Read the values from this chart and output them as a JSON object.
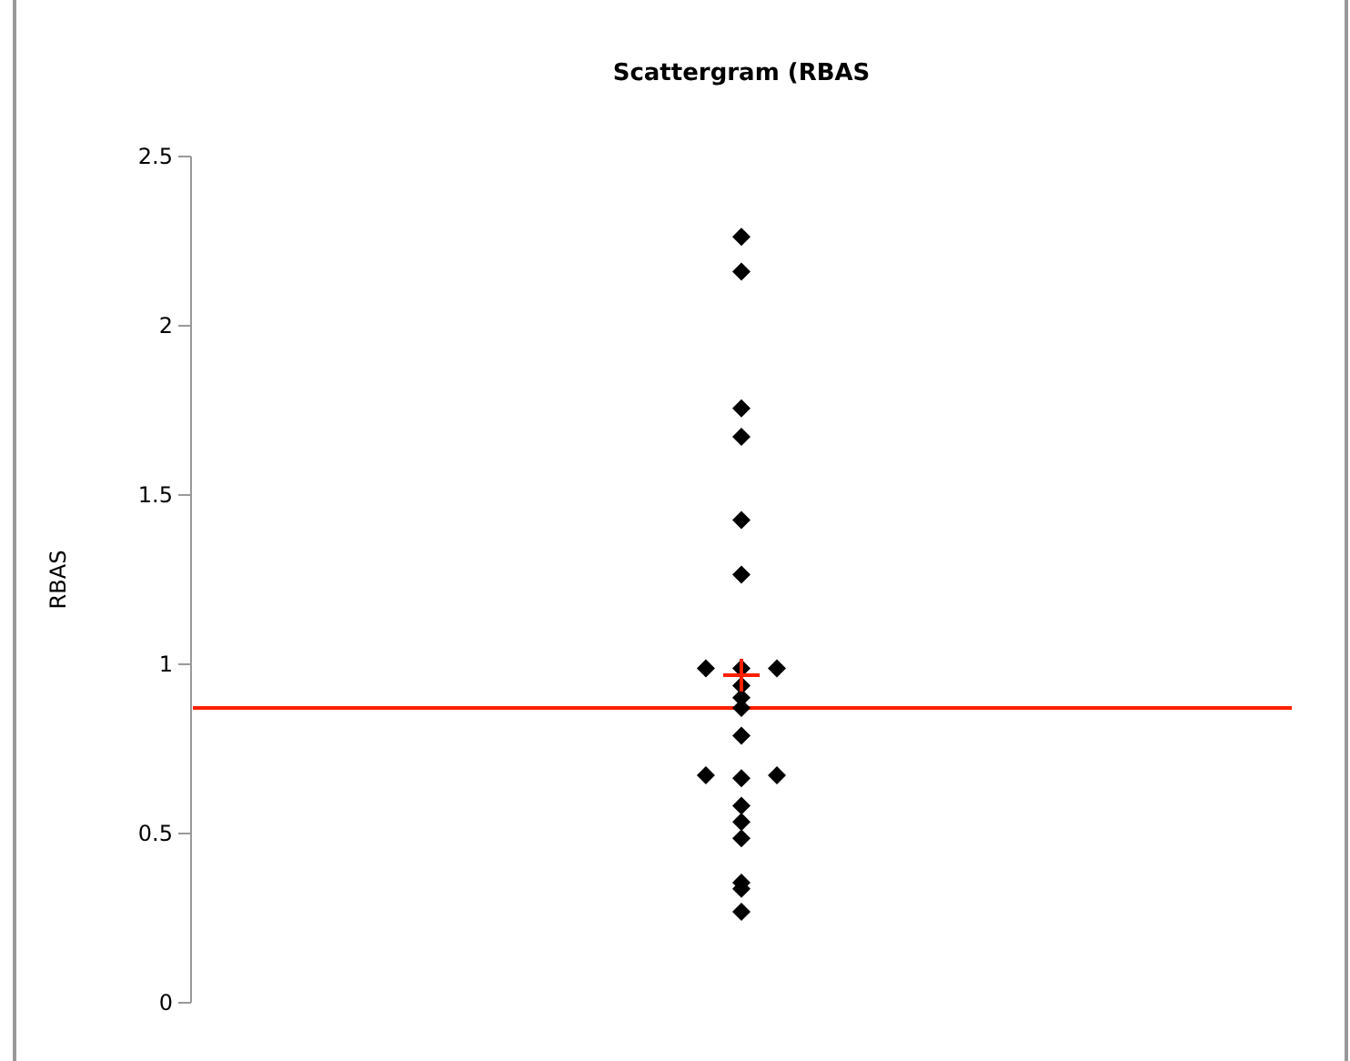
{
  "chart_data": {
    "type": "scatter",
    "title": "Scattergram (RBAS",
    "ylabel": "RBAS",
    "categories": [
      null,
      null,
      null,
      null,
      null,
      null,
      null,
      null,
      null,
      null,
      null,
      null,
      null,
      null,
      null,
      null,
      null,
      null,
      null,
      null,
      null,
      null,
      null,
      null,
      null,
      null,
      null,
      null,
      null,
      null,
      null
    ],
    "ylim": [
      0,
      2.5
    ],
    "yticks": [
      0,
      0.5,
      1,
      1.5,
      2,
      2.5
    ],
    "marker": "diamond",
    "ref_lines": [
      {
        "axis": "y",
        "value": 0.871,
        "color": "#ff2000"
      }
    ],
    "series": [
      {
        "color": "#000000",
        "values": [
          null,
          null,
          null,
          null,
          null,
          null,
          null,
          null,
          null,
          null,
          null,
          null,
          null,
          null,
          null,
          2.263,
          null,
          null,
          null,
          null,
          null,
          null,
          null,
          null,
          null,
          null,
          null,
          null,
          null,
          null,
          null
        ]
      },
      {
        "color": "#000000",
        "values": [
          null,
          null,
          null,
          null,
          null,
          null,
          null,
          null,
          null,
          null,
          null,
          null,
          null,
          null,
          null,
          2.16,
          null,
          null,
          null,
          null,
          null,
          null,
          null,
          null,
          null,
          null,
          null,
          null,
          null,
          null,
          null
        ]
      },
      {
        "color": "#000000",
        "values": [
          null,
          null,
          null,
          null,
          null,
          null,
          null,
          null,
          null,
          null,
          null,
          null,
          null,
          null,
          null,
          1.756,
          null,
          null,
          null,
          null,
          null,
          null,
          null,
          null,
          null,
          null,
          null,
          null,
          null,
          null,
          null
        ]
      },
      {
        "color": "#000000",
        "values": [
          null,
          null,
          null,
          null,
          null,
          null,
          null,
          null,
          null,
          null,
          null,
          null,
          null,
          null,
          null,
          1.672,
          null,
          null,
          null,
          null,
          null,
          null,
          null,
          null,
          null,
          null,
          null,
          null,
          null,
          null,
          null
        ]
      },
      {
        "color": "#000000",
        "values": [
          null,
          null,
          null,
          null,
          null,
          null,
          null,
          null,
          null,
          null,
          null,
          null,
          null,
          null,
          null,
          1.426,
          null,
          null,
          null,
          null,
          null,
          null,
          null,
          null,
          null,
          null,
          null,
          null,
          null,
          null,
          null
        ]
      },
      {
        "color": "#000000",
        "values": [
          null,
          null,
          null,
          null,
          null,
          null,
          null,
          null,
          null,
          null,
          null,
          null,
          null,
          null,
          null,
          1.265,
          null,
          null,
          null,
          null,
          null,
          null,
          null,
          null,
          null,
          null,
          null,
          null,
          null,
          null,
          null
        ]
      },
      {
        "color": "#000000",
        "values": [
          null,
          null,
          null,
          null,
          null,
          null,
          null,
          null,
          null,
          null,
          null,
          null,
          null,
          null,
          0.988,
          0.988,
          0.988,
          null,
          null,
          null,
          null,
          null,
          null,
          null,
          null,
          null,
          null,
          null,
          null,
          null,
          null
        ]
      },
      {
        "color": "#000000",
        "values": [
          null,
          null,
          null,
          null,
          null,
          null,
          null,
          null,
          null,
          null,
          null,
          null,
          null,
          null,
          null,
          0.937,
          null,
          null,
          null,
          null,
          null,
          null,
          null,
          null,
          null,
          null,
          null,
          null,
          null,
          null,
          null
        ]
      },
      {
        "color": "#000000",
        "values": [
          null,
          null,
          null,
          null,
          null,
          null,
          null,
          null,
          null,
          null,
          null,
          null,
          null,
          null,
          null,
          0.901,
          null,
          null,
          null,
          null,
          null,
          null,
          null,
          null,
          null,
          null,
          null,
          null,
          null,
          null,
          null
        ]
      },
      {
        "color": "#000000",
        "values": [
          null,
          null,
          null,
          null,
          null,
          null,
          null,
          null,
          null,
          null,
          null,
          null,
          null,
          null,
          null,
          0.871,
          null,
          null,
          null,
          null,
          null,
          null,
          null,
          null,
          null,
          null,
          null,
          null,
          null,
          null,
          null
        ]
      },
      {
        "color": "#000000",
        "values": [
          null,
          null,
          null,
          null,
          null,
          null,
          null,
          null,
          null,
          null,
          null,
          null,
          null,
          null,
          null,
          0.789,
          null,
          null,
          null,
          null,
          null,
          null,
          null,
          null,
          null,
          null,
          null,
          null,
          null,
          null,
          null
        ]
      },
      {
        "color": "#000000",
        "values": [
          null,
          null,
          null,
          null,
          null,
          null,
          null,
          null,
          null,
          null,
          null,
          null,
          null,
          null,
          0.672,
          0.663,
          0.672,
          null,
          null,
          null,
          null,
          null,
          null,
          null,
          null,
          null,
          null,
          null,
          null,
          null,
          null
        ]
      },
      {
        "color": "#000000",
        "values": [
          null,
          null,
          null,
          null,
          null,
          null,
          null,
          null,
          null,
          null,
          null,
          null,
          null,
          null,
          null,
          0.582,
          null,
          null,
          null,
          null,
          null,
          null,
          null,
          null,
          null,
          null,
          null,
          null,
          null,
          null,
          null
        ]
      },
      {
        "color": "#000000",
        "values": [
          null,
          null,
          null,
          null,
          null,
          null,
          null,
          null,
          null,
          null,
          null,
          null,
          null,
          null,
          null,
          0.534,
          null,
          null,
          null,
          null,
          null,
          null,
          null,
          null,
          null,
          null,
          null,
          null,
          null,
          null,
          null
        ]
      },
      {
        "color": "#000000",
        "values": [
          null,
          null,
          null,
          null,
          null,
          null,
          null,
          null,
          null,
          null,
          null,
          null,
          null,
          null,
          null,
          0.486,
          null,
          null,
          null,
          null,
          null,
          null,
          null,
          null,
          null,
          null,
          null,
          null,
          null,
          null,
          null
        ]
      },
      {
        "color": "#000000",
        "values": [
          null,
          null,
          null,
          null,
          null,
          null,
          null,
          null,
          null,
          null,
          null,
          null,
          null,
          null,
          null,
          0.355,
          null,
          null,
          null,
          null,
          null,
          null,
          null,
          null,
          null,
          null,
          null,
          null,
          null,
          null,
          null
        ]
      },
      {
        "color": "#000000",
        "values": [
          null,
          null,
          null,
          null,
          null,
          null,
          null,
          null,
          null,
          null,
          null,
          null,
          null,
          null,
          null,
          0.337,
          null,
          null,
          null,
          null,
          null,
          null,
          null,
          null,
          null,
          null,
          null,
          null,
          null,
          null,
          null
        ]
      },
      {
        "color": "#000000",
        "values": [
          null,
          null,
          null,
          null,
          null,
          null,
          null,
          null,
          null,
          null,
          null,
          null,
          null,
          null,
          null,
          0.269,
          null,
          null,
          null,
          null,
          null,
          null,
          null,
          null,
          null,
          null,
          null,
          null,
          null,
          null,
          null
        ]
      },
      {
        "color": "#ff2000",
        "marker": "cross",
        "values": [
          null,
          null,
          null,
          null,
          null,
          null,
          null,
          null,
          null,
          null,
          null,
          null,
          null,
          null,
          null,
          0.968,
          null,
          null,
          null,
          null,
          null,
          null,
          null,
          null,
          null,
          null,
          null,
          null,
          null,
          null,
          null
        ]
      }
    ]
  }
}
